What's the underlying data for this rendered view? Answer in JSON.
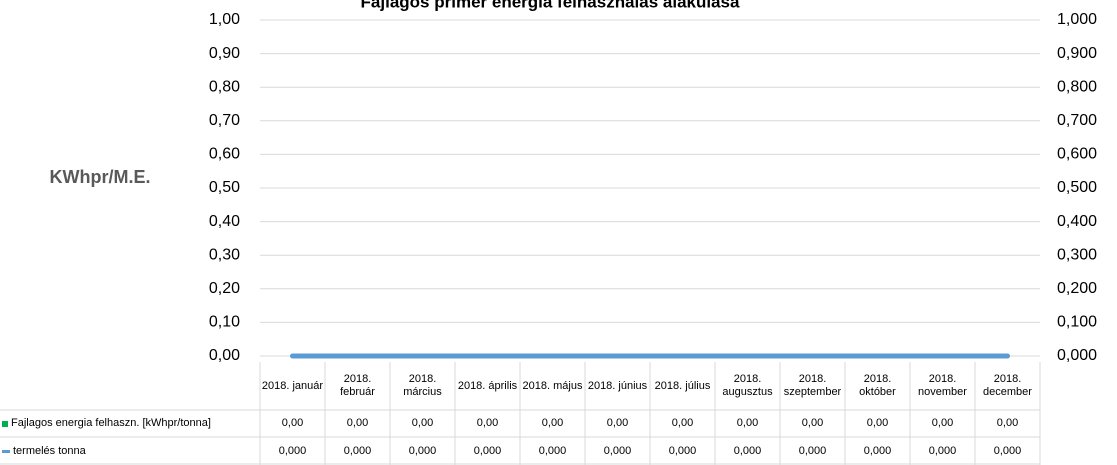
{
  "chart_data": {
    "type": "line",
    "title": "Fajlagos primer energia felhasználás alakulása",
    "y_label": "KWhpr/M.E.",
    "categories": [
      "2018. január",
      "2018. február",
      "2018. március",
      "2018. április",
      "2018. május",
      "2018. június",
      "2018. július",
      "2018. augusztus",
      "2018. szeptember",
      "2018. október",
      "2018. november",
      "2018. december"
    ],
    "series": [
      {
        "name": "Fajlagos energia felhaszn. [kWhpr/tonna]",
        "type": "bar",
        "color": "#00b050",
        "values": [
          0,
          0,
          0,
          0,
          0,
          0,
          0,
          0,
          0,
          0,
          0,
          0
        ],
        "value_labels": [
          "0,00",
          "0,00",
          "0,00",
          "0,00",
          "0,00",
          "0,00",
          "0,00",
          "0,00",
          "0,00",
          "0,00",
          "0,00",
          "0,00"
        ]
      },
      {
        "name": "termelés tonna",
        "type": "line",
        "axis": "y2",
        "color": "#5b9bd5",
        "values": [
          0,
          0,
          0,
          0,
          0,
          0,
          0,
          0,
          0,
          0,
          0,
          0
        ],
        "value_labels": [
          "0,000",
          "0,000",
          "0,000",
          "0,000",
          "0,000",
          "0,000",
          "0,000",
          "0,000",
          "0,000",
          "0,000",
          "0,000",
          "0,000"
        ]
      }
    ],
    "ylim": [
      0,
      1
    ],
    "yticks": [
      {
        "value": 0,
        "label": "0,00"
      },
      {
        "value": 0.1,
        "label": "0,10"
      },
      {
        "value": 0.2,
        "label": "0,20"
      },
      {
        "value": 0.3,
        "label": "0,30"
      },
      {
        "value": 0.4,
        "label": "0,40"
      },
      {
        "value": 0.5,
        "label": "0,50"
      },
      {
        "value": 0.6,
        "label": "0,60"
      },
      {
        "value": 0.7,
        "label": "0,70"
      },
      {
        "value": 0.8,
        "label": "0,80"
      },
      {
        "value": 0.9,
        "label": "0,90"
      },
      {
        "value": 1,
        "label": "1,00"
      }
    ],
    "y2lim": [
      0,
      1
    ],
    "y2ticks": [
      {
        "value": 0,
        "label": "0,000"
      },
      {
        "value": 0.1,
        "label": "0,100"
      },
      {
        "value": 0.2,
        "label": "0,200"
      },
      {
        "value": 0.3,
        "label": "0,300"
      },
      {
        "value": 0.4,
        "label": "0,400"
      },
      {
        "value": 0.5,
        "label": "0,500"
      },
      {
        "value": 0.6,
        "label": "0,600"
      },
      {
        "value": 0.7,
        "label": "0,700"
      },
      {
        "value": 0.8,
        "label": "0,800"
      },
      {
        "value": 0.9,
        "label": "0,900"
      },
      {
        "value": 1,
        "label": "1,000"
      }
    ],
    "grid": true,
    "data_table": true
  }
}
